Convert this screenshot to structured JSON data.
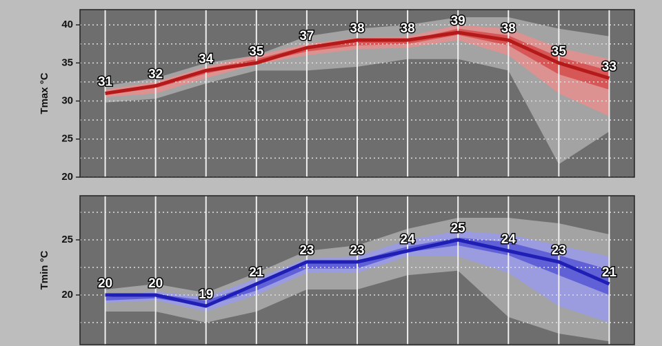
{
  "chart_data": [
    {
      "type": "line",
      "y_label": "Tmax °C",
      "x": [
        0,
        1,
        2,
        3,
        4,
        5,
        6,
        7,
        8,
        9,
        10
      ],
      "xlim": [
        -0.5,
        10.5
      ],
      "ylim": [
        20,
        42
      ],
      "yticks": [
        20,
        25,
        30,
        35,
        40
      ],
      "minor_grid": [
        22.5,
        27.5,
        32.5,
        37.5
      ],
      "grid": true,
      "bands": [
        {
          "color": "#a9a9a9",
          "upper": [
            32,
            33,
            35,
            36,
            38.5,
            39.5,
            40,
            41,
            41,
            39.5,
            38.5
          ],
          "lower": [
            29.8,
            30.3,
            32.3,
            34,
            34,
            34.5,
            35.5,
            35.5,
            34,
            21.7,
            26
          ]
        },
        {
          "color": "#e39090",
          "upper": [
            31.5,
            32.5,
            34.5,
            36,
            37.5,
            38.3,
            38.5,
            40,
            39.5,
            37,
            35.5
          ],
          "lower": [
            30.5,
            31,
            33,
            34.8,
            36,
            36.8,
            37,
            38,
            36,
            31,
            28
          ]
        },
        {
          "color": "#d65050",
          "upper": [
            31.2,
            32.2,
            34.2,
            35.5,
            37.2,
            38,
            38,
            39.5,
            38.6,
            35.8,
            34
          ],
          "lower": [
            30.8,
            31.7,
            33.6,
            35,
            36.5,
            37.3,
            37.5,
            38.7,
            37.3,
            33.5,
            31.5
          ]
        }
      ],
      "series": [
        {
          "color": "#b51a1a",
          "values": [
            31,
            32,
            34,
            35,
            37,
            38,
            38,
            39,
            38,
            35,
            33
          ]
        }
      ]
    },
    {
      "type": "line",
      "y_label": "Tmin °C",
      "x": [
        0,
        1,
        2,
        3,
        4,
        5,
        6,
        7,
        8,
        9,
        10
      ],
      "xlim": [
        -0.5,
        10.5
      ],
      "ylim": [
        15.5,
        29
      ],
      "yticks": [
        20,
        25
      ],
      "minor_grid": [
        17.5,
        22.5,
        27.5
      ],
      "grid": true,
      "bands": [
        {
          "color": "#a9a9a9",
          "upper": [
            20.5,
            21,
            20.2,
            22,
            24,
            24.5,
            26,
            27,
            27,
            26.5,
            25.5
          ],
          "lower": [
            18.5,
            18.5,
            17.5,
            18.5,
            20.5,
            20.5,
            21.8,
            22.2,
            18,
            16.5,
            15.8
          ]
        },
        {
          "color": "#9a9ae6",
          "upper": [
            20,
            20.3,
            19.8,
            21.5,
            23.3,
            23.5,
            25,
            25.8,
            25.5,
            24.5,
            23.5
          ],
          "lower": [
            19.3,
            19.5,
            18.5,
            20,
            22,
            22,
            23.5,
            23.5,
            22,
            19,
            17.5
          ]
        },
        {
          "color": "#5a5ad6",
          "upper": [
            19.8,
            20.1,
            19.5,
            21,
            22.9,
            23.1,
            24.4,
            25.2,
            24.8,
            23.6,
            22.3
          ],
          "lower": [
            19.5,
            19.7,
            19,
            20.4,
            22.4,
            22.4,
            23.9,
            24.5,
            23.6,
            21.8,
            20
          ]
        }
      ],
      "series": [
        {
          "color": "#1f1fb5",
          "values": [
            20,
            20,
            19,
            21,
            23,
            23,
            24,
            25,
            24,
            23,
            21
          ]
        }
      ]
    }
  ]
}
